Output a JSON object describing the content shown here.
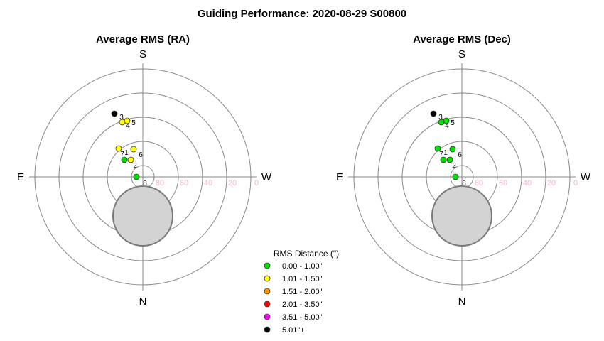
{
  "title": "Guiding Performance: 2020-08-29 S00800",
  "chart_data": [
    {
      "type": "scatter",
      "subtitle": "Average RMS (RA)",
      "directions": {
        "top": "S",
        "bottom": "N",
        "left": "E",
        "right": "W"
      },
      "alt_ticks": [
        "80",
        "60",
        "40",
        "20",
        "0"
      ],
      "points": [
        {
          "label": "1",
          "dx": -26,
          "dy": -24,
          "cat": 0
        },
        {
          "label": "2",
          "dx": -17,
          "dy": -24,
          "cat": 1
        },
        {
          "label": "3",
          "dx": -40,
          "dy": -89,
          "cat": 5
        },
        {
          "label": "4",
          "dx": -29,
          "dy": -77,
          "cat": 1
        },
        {
          "label": "5",
          "dx": -22,
          "dy": -79,
          "cat": 1
        },
        {
          "label": "6",
          "dx": -13,
          "dy": -39,
          "cat": 1
        },
        {
          "label": "7",
          "dx": -34,
          "dy": -40,
          "cat": 1
        },
        {
          "label": "8",
          "dx": -9,
          "dy": 0,
          "cat": 0
        }
      ]
    },
    {
      "type": "scatter",
      "subtitle": "Average RMS (Dec)",
      "directions": {
        "top": "S",
        "bottom": "N",
        "left": "E",
        "right": "W"
      },
      "alt_ticks": [
        "80",
        "60",
        "40",
        "20",
        "0"
      ],
      "points": [
        {
          "label": "1",
          "dx": -26,
          "dy": -24,
          "cat": 0
        },
        {
          "label": "2",
          "dx": -17,
          "dy": -24,
          "cat": 0
        },
        {
          "label": "3",
          "dx": -40,
          "dy": -89,
          "cat": 5
        },
        {
          "label": "4",
          "dx": -29,
          "dy": -77,
          "cat": 0
        },
        {
          "label": "5",
          "dx": -22,
          "dy": -79,
          "cat": 0
        },
        {
          "label": "6",
          "dx": -13,
          "dy": -39,
          "cat": 0
        },
        {
          "label": "7",
          "dx": -34,
          "dy": -40,
          "cat": 0
        },
        {
          "label": "8",
          "dx": -9,
          "dy": 0,
          "cat": 0
        }
      ]
    }
  ],
  "legend": {
    "title": "RMS Distance (\")",
    "items": [
      {
        "label": "0.00 - 1.00\"",
        "color": "#00e000"
      },
      {
        "label": "1.01 - 1.50\"",
        "color": "#ffff00"
      },
      {
        "label": "1.51 - 2.00\"",
        "color": "#ff9900"
      },
      {
        "label": "2.01 - 3.50\"",
        "color": "#ff0000"
      },
      {
        "label": "3.51 - 5.00\"",
        "color": "#ff00ff"
      },
      {
        "label": "5.01\"+",
        "color": "#000000"
      }
    ]
  }
}
